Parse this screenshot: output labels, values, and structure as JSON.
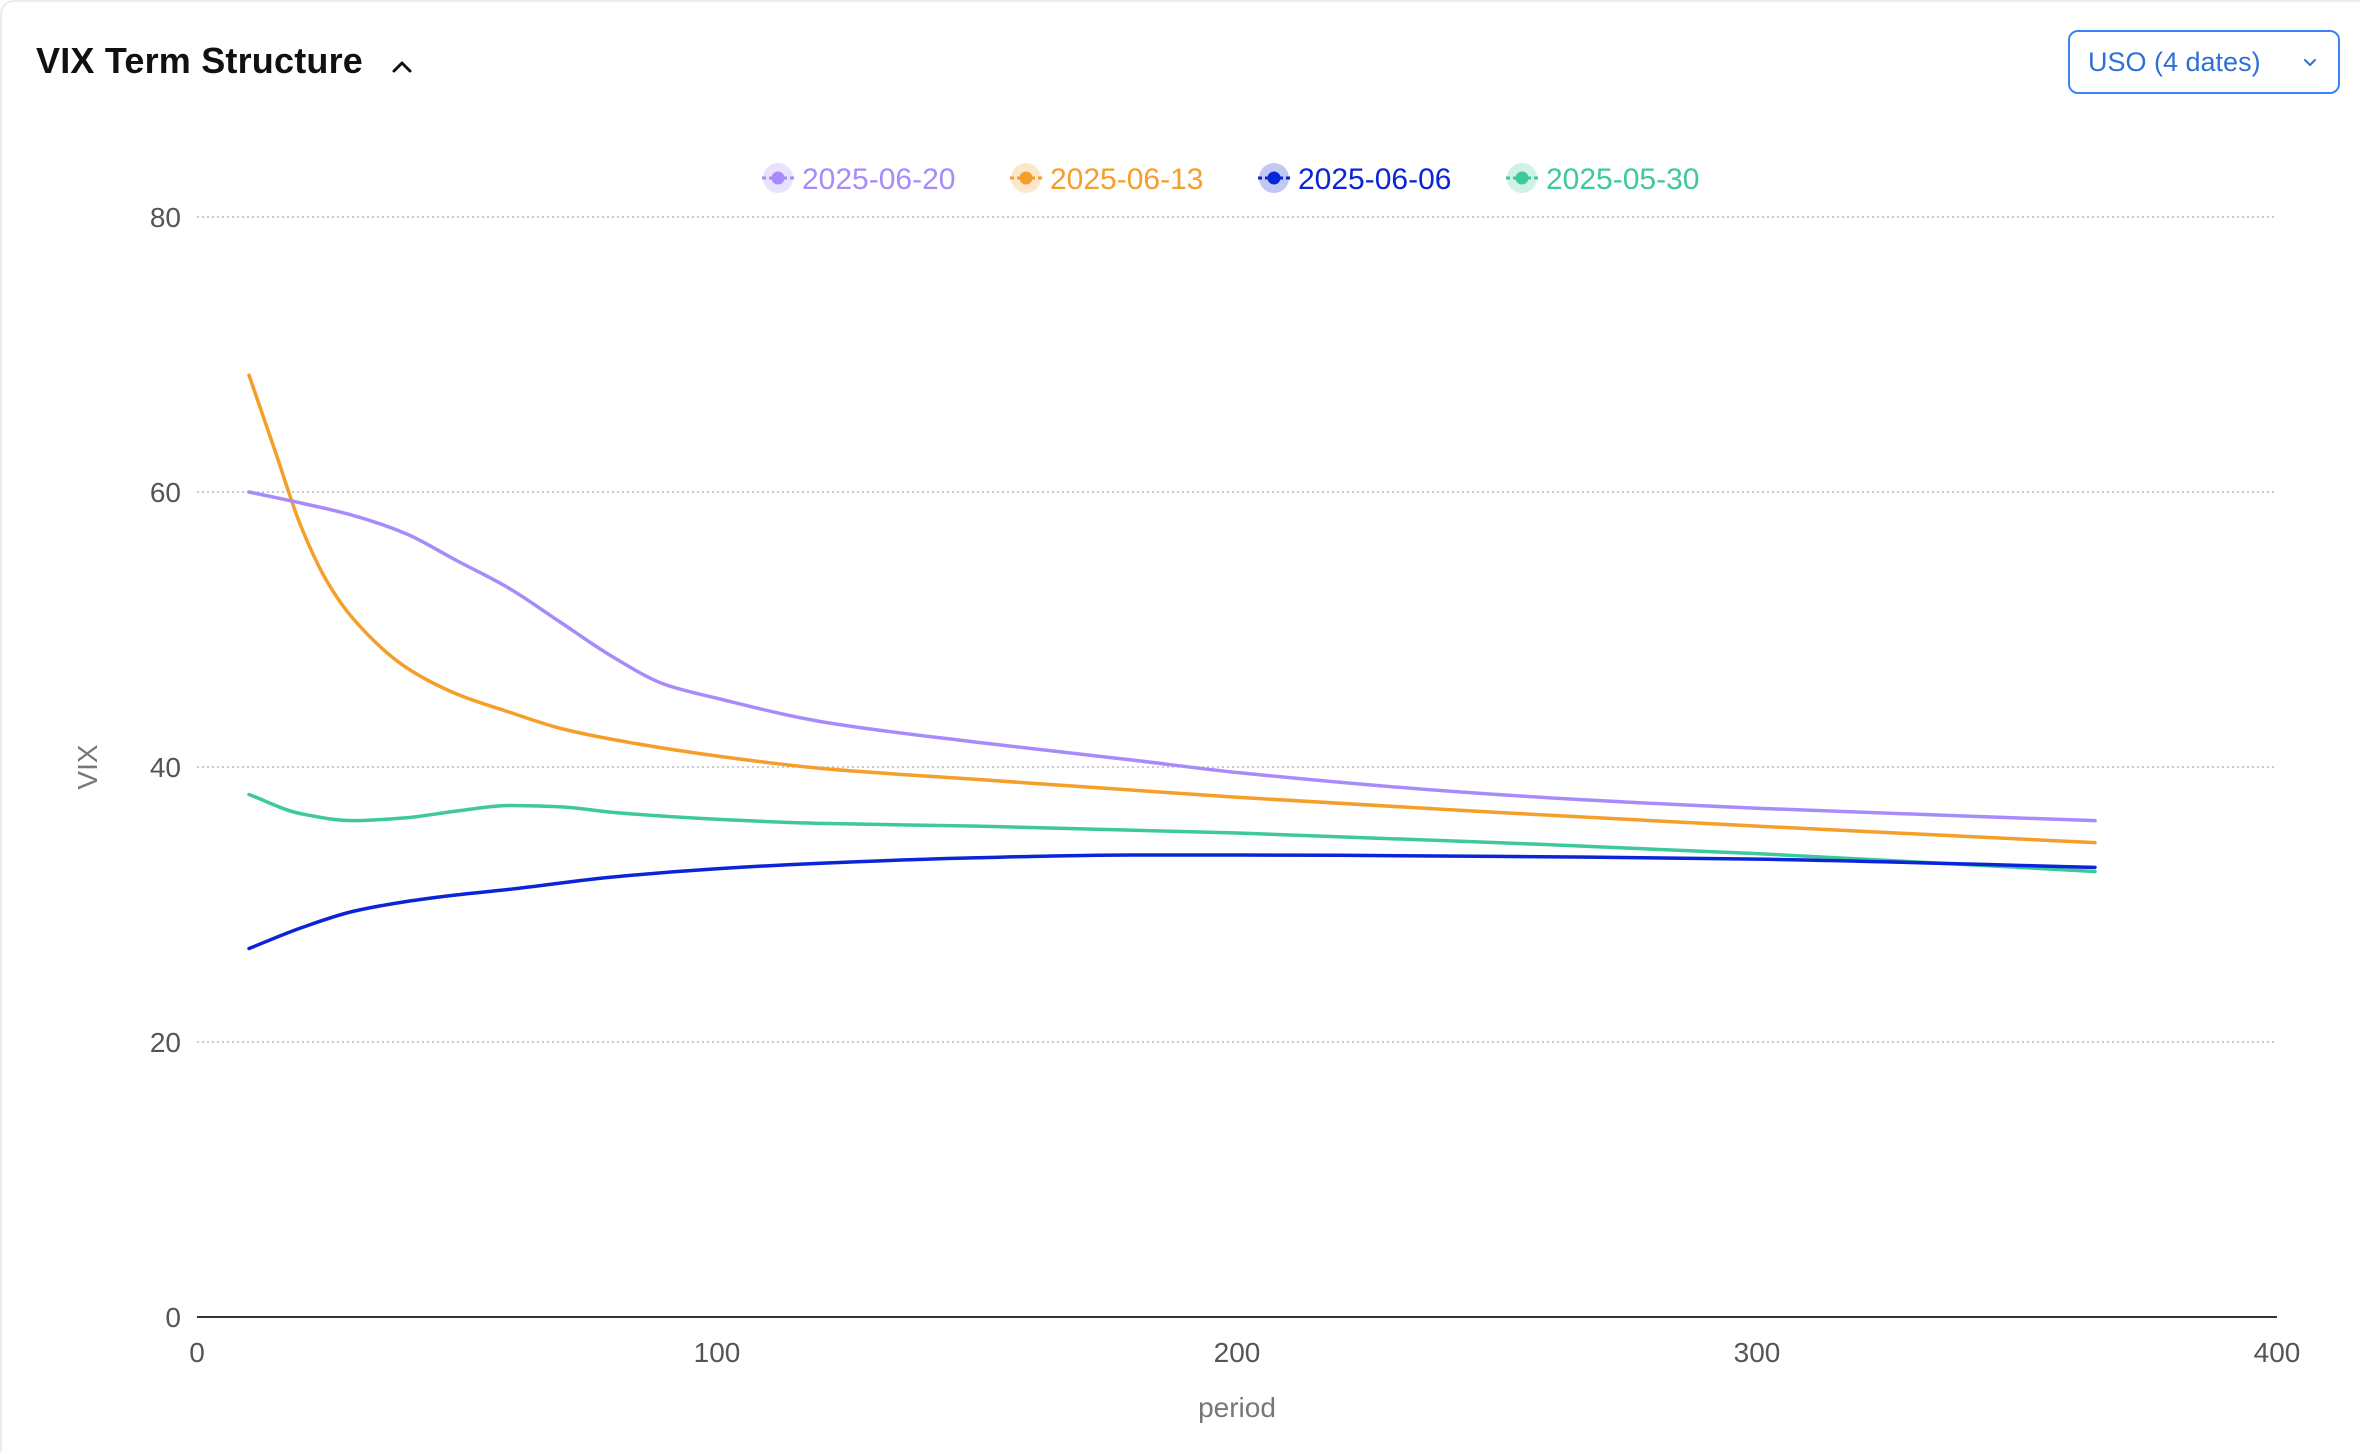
{
  "header": {
    "title": "VIX Term Structure",
    "collapse_icon": "chevron-up-icon"
  },
  "selector": {
    "label": "USO (4 dates)",
    "icon": "chevron-down-icon",
    "border_color": "#3b82f6",
    "text_color": "#2f6fdb"
  },
  "chart_data": {
    "type": "line",
    "xlabel": "period",
    "ylabel": "VIX",
    "xlim": [
      0,
      400
    ],
    "ylim": [
      0,
      80
    ],
    "x_ticks": [
      "0",
      "100",
      "200",
      "300",
      "400"
    ],
    "y_ticks": [
      "0",
      "20",
      "40",
      "60",
      "80"
    ],
    "grid": "horizontal dotted",
    "legend_position": "top-center",
    "series": [
      {
        "name": "2025-06-20",
        "color": "#a78bfa",
        "x": [
          10,
          20,
          30,
          40,
          50,
          60,
          70,
          80,
          90,
          100,
          120,
          150,
          180,
          200,
          250,
          300,
          365
        ],
        "values": [
          60,
          59.2,
          58.3,
          57,
          55,
          53,
          50.5,
          48,
          46,
          45,
          43.3,
          41.8,
          40.5,
          39.6,
          38,
          37,
          36.1
        ]
      },
      {
        "name": "2025-06-13",
        "color": "#f59e2a",
        "x": [
          10,
          15,
          20,
          25,
          30,
          40,
          50,
          60,
          70,
          80,
          100,
          120,
          150,
          200,
          250,
          300,
          365
        ],
        "values": [
          68.5,
          63,
          57.5,
          53.5,
          50.8,
          47.3,
          45.3,
          44,
          42.8,
          42,
          40.8,
          39.9,
          39.1,
          37.8,
          36.7,
          35.7,
          34.5
        ]
      },
      {
        "name": "2025-06-06",
        "color": "#0a24d8",
        "x": [
          10,
          20,
          30,
          40,
          50,
          60,
          80,
          100,
          120,
          150,
          180,
          200,
          250,
          300,
          365
        ],
        "values": [
          26.8,
          28.3,
          29.5,
          30.2,
          30.7,
          31.1,
          32,
          32.6,
          33,
          33.4,
          33.6,
          33.6,
          33.5,
          33.3,
          32.7
        ]
      },
      {
        "name": "2025-05-30",
        "color": "#3ec99a",
        "x": [
          10,
          20,
          30,
          40,
          50,
          60,
          70,
          80,
          100,
          120,
          150,
          200,
          250,
          300,
          365
        ],
        "values": [
          38,
          36.6,
          36.1,
          36.3,
          36.8,
          37.2,
          37.1,
          36.7,
          36.2,
          35.9,
          35.7,
          35.2,
          34.5,
          33.7,
          32.4
        ]
      }
    ]
  }
}
